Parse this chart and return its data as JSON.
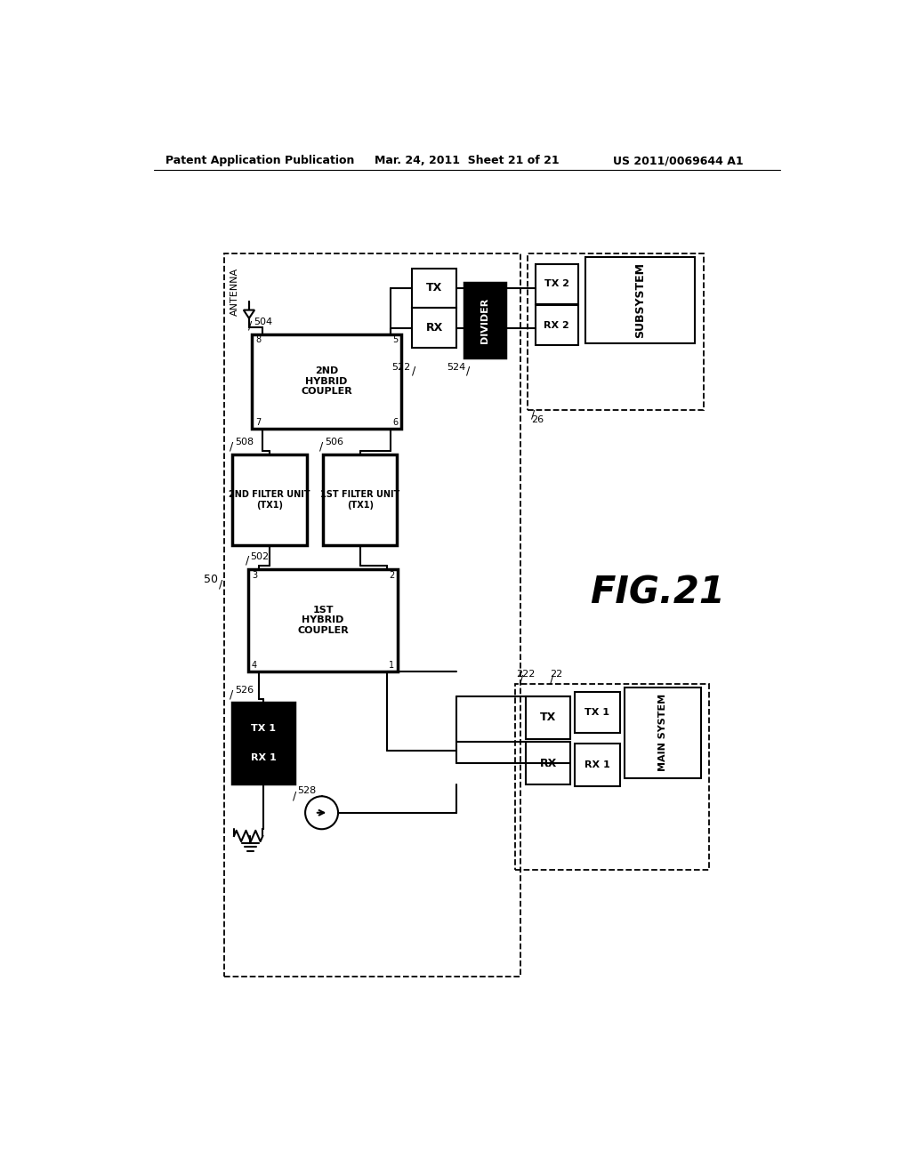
{
  "title_left": "Patent Application Publication",
  "title_center": "Mar. 24, 2011  Sheet 21 of 21",
  "title_right": "US 2011/0069644 A1",
  "fig_label": "FIG.21",
  "bg_color": "#ffffff"
}
